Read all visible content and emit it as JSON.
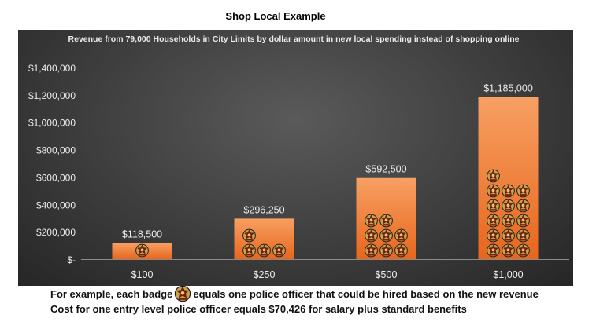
{
  "page": {
    "title": "Shop Local Example",
    "footnote_prefix": "For example, each badge",
    "footnote_suffix": "equals one police officer that could be hired based on the new revenue",
    "footnote_line2": "Cost for one entry level police officer equals $70,426 for salary plus standard benefits"
  },
  "badge_icon": "police-badge-icon",
  "chart_data": {
    "type": "bar",
    "title": "Revenue from 79,000 Households in City Limits by dollar amount in new local spending instead of shopping online",
    "categories": [
      "$100",
      "$250",
      "$500",
      "$1,000"
    ],
    "values": [
      118500,
      296250,
      592500,
      1185000
    ],
    "data_labels": [
      "$118,500",
      "$296,250",
      "$592,500",
      "$1,185,000"
    ],
    "badges_per_bar": [
      1,
      4,
      8,
      16
    ],
    "ylim": [
      0,
      1400000
    ],
    "yticks": [
      0,
      200000,
      400000,
      600000,
      800000,
      1000000,
      1200000,
      1400000
    ],
    "ytick_labels": [
      "$-",
      "$200,000",
      "$400,000",
      "$600,000",
      "$800,000",
      "$1,000,000",
      "$1,200,000",
      "$1,400,000"
    ],
    "grid": false,
    "legend": "none",
    "colors": {
      "bar_top": "#f7a063",
      "bar_bottom": "#e8661c",
      "background": "#3d3d3d",
      "text": "#ececec",
      "badge_gold": "#c9a24a",
      "badge_red": "#7a1f12"
    }
  }
}
